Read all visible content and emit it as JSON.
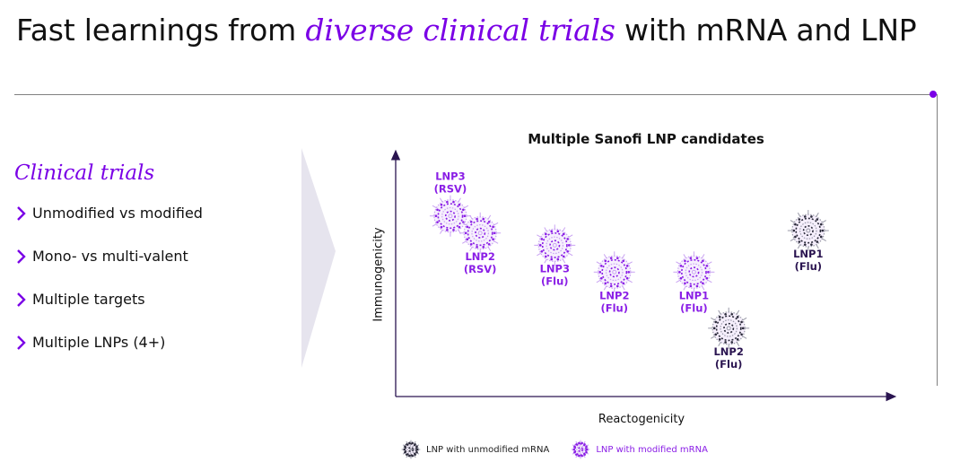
{
  "slide": {
    "title_prefix": "Fast learnings from ",
    "title_accent": "diverse clinical trials",
    "title_suffix": " with mRNA and LNP",
    "accent_color": "#7a00e6"
  },
  "left_panel": {
    "heading": "Clinical trials",
    "bullets": [
      {
        "label": "Unmodified vs modified",
        "icon": "chevron-right-icon"
      },
      {
        "label": "Mono- vs multi-valent",
        "icon": "chevron-right-icon"
      },
      {
        "label": "Multiple targets",
        "icon": "chevron-right-icon"
      },
      {
        "label": "Multiple LNPs (4+)",
        "icon": "chevron-right-icon"
      }
    ]
  },
  "chart_data": {
    "type": "scatter",
    "title": "Multiple Sanofi LNP candidates",
    "xlabel": "Reactogenicity",
    "ylabel": "Immunogenicity",
    "xlim": [
      0,
      10
    ],
    "ylim": [
      0,
      10
    ],
    "grid": false,
    "ticks": "none (qualitative axes, relative units)",
    "series": [
      {
        "name": "LNP with modified mRNA",
        "color": "#8a1ee6",
        "points": [
          {
            "label": "LNP3",
            "sublabel": "(RSV)",
            "x": 1.1,
            "y": 7.4,
            "label_pos": "above"
          },
          {
            "label": "LNP2",
            "sublabel": "(RSV)",
            "x": 1.7,
            "y": 6.7,
            "label_pos": "below"
          },
          {
            "label": "LNP3",
            "sublabel": "(Flu)",
            "x": 3.2,
            "y": 6.2,
            "label_pos": "below"
          },
          {
            "label": "LNP2",
            "sublabel": "(Flu)",
            "x": 4.4,
            "y": 5.1,
            "label_pos": "below"
          },
          {
            "label": "LNP1",
            "sublabel": "(Flu)",
            "x": 6.0,
            "y": 5.1,
            "label_pos": "below"
          }
        ]
      },
      {
        "name": "LNP with unmodified mRNA",
        "color": "#2b2b3a",
        "points": [
          {
            "label": "LNP2",
            "sublabel": "(Flu)",
            "x": 6.7,
            "y": 2.8,
            "label_pos": "below"
          },
          {
            "label": "LNP1",
            "sublabel": "(Flu)",
            "x": 8.3,
            "y": 6.8,
            "label_pos": "below"
          }
        ]
      }
    ],
    "legend": [
      {
        "label": "LNP with unmodified mRNA",
        "color": "#2b2b3a"
      },
      {
        "label": "LNP with modified mRNA",
        "color": "#8a1ee6"
      }
    ],
    "legend_position": "bottom"
  }
}
